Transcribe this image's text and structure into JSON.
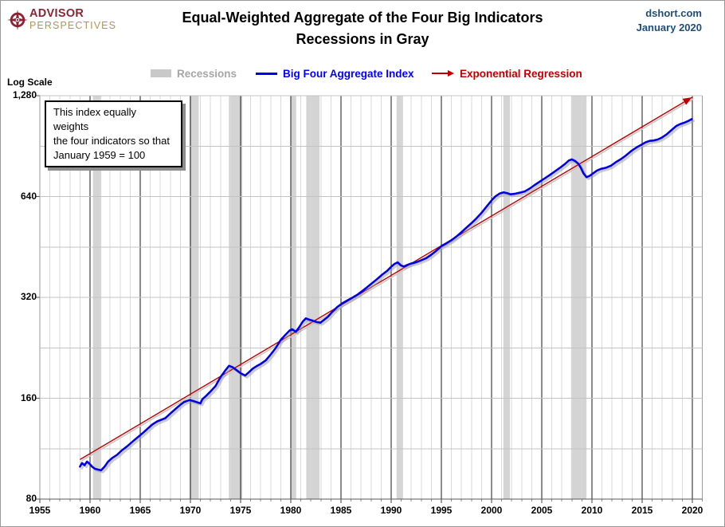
{
  "header": {
    "logo_line1": "ADVISOR",
    "logo_line2": "PERSPECTIVES",
    "title_line1": "Equal-Weighted Aggregate of the Four Big Indicators",
    "title_line2": "Recessions in Gray",
    "source_line1": "dshort.com",
    "source_line2": "January 2020"
  },
  "legend": {
    "recessions_label": "Recessions",
    "index_label": "Big Four Aggregate Index",
    "regression_label": "Exponential Regression"
  },
  "axis_note": "Log Scale",
  "annotation": {
    "lines": [
      "This index equally weights",
      "the four indicators  so that",
      "January 1959 = 100"
    ]
  },
  "colors": {
    "index_line": "#0000EE",
    "regression_line": "#C00000",
    "recession_band": "#D4D4D4",
    "year_gridline": "#D9D9D9",
    "five_year_gridline": "#1a1a1a",
    "horizontal_gridline": "#C3C3C3",
    "axis_line": "#595959",
    "frame_line": "#9a9a9a",
    "header_blue": "#1F4E79",
    "logo_red": "#8E2433",
    "logo_tan": "#B49455",
    "legend_gray": "#A6A6A6"
  },
  "chart_data": {
    "type": "line",
    "title": "Equal-Weighted Aggregate of the Four Big Indicators",
    "subtitle": "Recessions in Gray",
    "y_axis": "log scale, index January 1959 = 100",
    "xlim": [
      1955,
      2021
    ],
    "ylim": [
      80,
      1280
    ],
    "x_ticks": [
      1955,
      1960,
      1965,
      1970,
      1975,
      1980,
      1985,
      1990,
      1995,
      2000,
      2005,
      2010,
      2015,
      2020
    ],
    "y_ticks": [
      80,
      160,
      320,
      640,
      1280
    ],
    "y_tick_labels": [
      "80",
      "160",
      "320",
      "640",
      "1,280"
    ],
    "grid": "major 5-year vertical black, yearly light gray vertical, half-octave horizontal light gray",
    "legend_position": "top",
    "recessions": [
      [
        1960.29,
        1961.12
      ],
      [
        1969.92,
        1970.83
      ],
      [
        1973.83,
        1975.17
      ],
      [
        1980.0,
        1980.54
      ],
      [
        1981.54,
        1982.87
      ],
      [
        1990.54,
        1991.17
      ],
      [
        2001.17,
        2001.83
      ],
      [
        2007.92,
        2009.46
      ]
    ],
    "series": [
      {
        "name": "Big Four Aggregate Index",
        "color": "#0000EE",
        "points": [
          [
            1959.0,
            100
          ],
          [
            1959.2,
            102.5
          ],
          [
            1959.45,
            101
          ],
          [
            1959.7,
            103.5
          ],
          [
            1959.95,
            102
          ],
          [
            1960.2,
            100
          ],
          [
            1960.5,
            98.5
          ],
          [
            1960.8,
            98
          ],
          [
            1961.1,
            97.5
          ],
          [
            1961.45,
            100
          ],
          [
            1961.8,
            103.5
          ],
          [
            1962.2,
            106
          ],
          [
            1962.7,
            108.5
          ],
          [
            1963.2,
            112
          ],
          [
            1963.7,
            115
          ],
          [
            1964.2,
            118.5
          ],
          [
            1964.7,
            122
          ],
          [
            1965.2,
            125.5
          ],
          [
            1965.7,
            129.5
          ],
          [
            1966.2,
            133.5
          ],
          [
            1966.7,
            136.5
          ],
          [
            1967.1,
            138
          ],
          [
            1967.5,
            139.5
          ],
          [
            1968.0,
            144
          ],
          [
            1968.5,
            148.5
          ],
          [
            1969.0,
            153
          ],
          [
            1969.4,
            156
          ],
          [
            1969.9,
            158
          ],
          [
            1970.3,
            157
          ],
          [
            1970.7,
            155.5
          ],
          [
            1971.0,
            154.5
          ],
          [
            1971.2,
            159
          ],
          [
            1971.6,
            163
          ],
          [
            1972.0,
            167.5
          ],
          [
            1972.5,
            174
          ],
          [
            1973.0,
            185
          ],
          [
            1973.5,
            194
          ],
          [
            1973.85,
            200
          ],
          [
            1974.2,
            198
          ],
          [
            1974.6,
            194
          ],
          [
            1975.0,
            190
          ],
          [
            1975.45,
            187
          ],
          [
            1975.8,
            191
          ],
          [
            1976.2,
            196
          ],
          [
            1976.6,
            199.5
          ],
          [
            1977.0,
            202.5
          ],
          [
            1977.5,
            207.5
          ],
          [
            1978.0,
            216
          ],
          [
            1978.5,
            226
          ],
          [
            1979.0,
            239
          ],
          [
            1979.5,
            248
          ],
          [
            1979.9,
            255
          ],
          [
            1980.15,
            257
          ],
          [
            1980.5,
            252.5
          ],
          [
            1980.85,
            261
          ],
          [
            1981.2,
            271
          ],
          [
            1981.5,
            277
          ],
          [
            1981.85,
            274.5
          ],
          [
            1982.2,
            272.5
          ],
          [
            1982.6,
            270
          ],
          [
            1982.95,
            269
          ],
          [
            1983.3,
            274
          ],
          [
            1983.7,
            280
          ],
          [
            1984.1,
            289
          ],
          [
            1984.6,
            299
          ],
          [
            1985.1,
            307
          ],
          [
            1985.6,
            313
          ],
          [
            1986.1,
            319
          ],
          [
            1986.6,
            325.5
          ],
          [
            1987.1,
            334
          ],
          [
            1987.6,
            343
          ],
          [
            1988.1,
            353
          ],
          [
            1988.6,
            363
          ],
          [
            1989.1,
            374
          ],
          [
            1989.6,
            384
          ],
          [
            1990.0,
            395
          ],
          [
            1990.35,
            403
          ],
          [
            1990.65,
            407
          ],
          [
            1990.95,
            399
          ],
          [
            1991.25,
            395.5
          ],
          [
            1991.6,
            400
          ],
          [
            1992.0,
            404
          ],
          [
            1992.5,
            407.5
          ],
          [
            1993.0,
            413
          ],
          [
            1993.5,
            419
          ],
          [
            1994.0,
            429
          ],
          [
            1994.5,
            441
          ],
          [
            1995.0,
            455
          ],
          [
            1995.5,
            464
          ],
          [
            1996.0,
            474
          ],
          [
            1996.5,
            486
          ],
          [
            1997.0,
            501
          ],
          [
            1997.5,
            517
          ],
          [
            1998.0,
            533
          ],
          [
            1998.5,
            551
          ],
          [
            1999.0,
            572
          ],
          [
            1999.5,
            597
          ],
          [
            2000.0,
            623
          ],
          [
            2000.4,
            641
          ],
          [
            2000.8,
            653
          ],
          [
            2001.2,
            659
          ],
          [
            2001.55,
            655
          ],
          [
            2001.9,
            650
          ],
          [
            2002.3,
            652
          ],
          [
            2002.8,
            657
          ],
          [
            2003.3,
            663
          ],
          [
            2003.8,
            676
          ],
          [
            2004.3,
            693
          ],
          [
            2004.8,
            709
          ],
          [
            2005.3,
            725
          ],
          [
            2005.8,
            742
          ],
          [
            2006.3,
            760
          ],
          [
            2006.8,
            779
          ],
          [
            2007.3,
            800
          ],
          [
            2007.7,
            820
          ],
          [
            2008.0,
            826
          ],
          [
            2008.35,
            816
          ],
          [
            2008.65,
            801
          ],
          [
            2008.9,
            779
          ],
          [
            2009.15,
            751
          ],
          [
            2009.45,
            731
          ],
          [
            2009.75,
            737
          ],
          [
            2010.1,
            750
          ],
          [
            2010.5,
            765
          ],
          [
            2010.9,
            774
          ],
          [
            2011.4,
            780
          ],
          [
            2011.9,
            791
          ],
          [
            2012.4,
            811
          ],
          [
            2012.9,
            828
          ],
          [
            2013.4,
            849
          ],
          [
            2013.9,
            874
          ],
          [
            2014.4,
            895
          ],
          [
            2014.9,
            913
          ],
          [
            2015.35,
            929
          ],
          [
            2015.75,
            938
          ],
          [
            2016.15,
            941
          ],
          [
            2016.55,
            947
          ],
          [
            2016.95,
            959
          ],
          [
            2017.45,
            982
          ],
          [
            2017.95,
            1012
          ],
          [
            2018.4,
            1039
          ],
          [
            2018.8,
            1053
          ],
          [
            2019.2,
            1063
          ],
          [
            2019.6,
            1076
          ],
          [
            2019.95,
            1090
          ]
        ]
      },
      {
        "name": "Exponential Regression",
        "color": "#C00000",
        "arrow_end": true,
        "points": [
          [
            1959.0,
            105
          ],
          [
            2019.95,
            1265
          ]
        ]
      }
    ]
  }
}
